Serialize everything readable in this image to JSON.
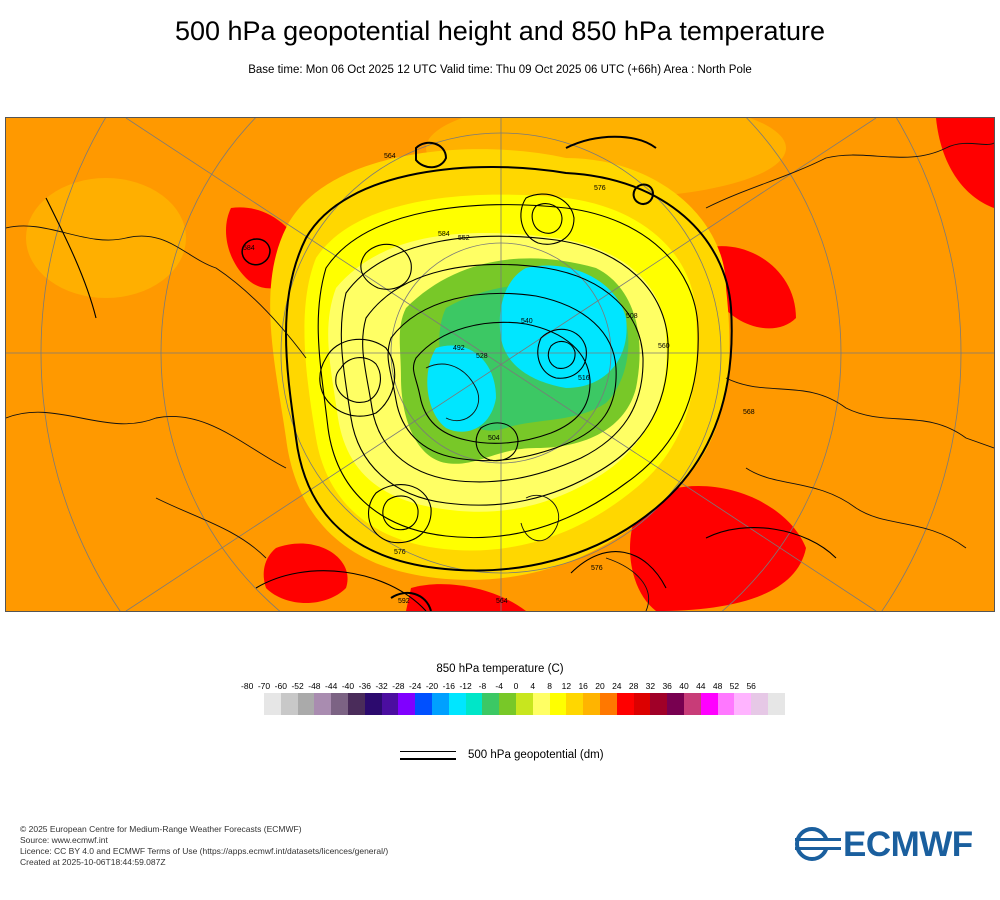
{
  "header": {
    "title": "500 hPa geopotential height and 850 hPa temperature",
    "subtitle": "Base time: Mon 06 Oct 2025 12 UTC Valid time: Thu 09 Oct 2025 06 UTC (+66h) Area : North Pole"
  },
  "map": {
    "area": "North Pole",
    "contour_labels": [
      "564",
      "576",
      "584",
      "552",
      "540",
      "528",
      "516",
      "504",
      "492",
      "508",
      "560",
      "568",
      "576",
      "584",
      "592",
      "564",
      "576"
    ]
  },
  "legend": {
    "temperature_title": "850 hPa temperature (C)",
    "ticks": [
      "-80",
      "-70",
      "-60",
      "-52",
      "-48",
      "-44",
      "-40",
      "-36",
      "-32",
      "-28",
      "-24",
      "-20",
      "-16",
      "-12",
      "-8",
      "-4",
      "0",
      "4",
      "8",
      "12",
      "16",
      "20",
      "24",
      "28",
      "32",
      "36",
      "40",
      "44",
      "48",
      "52",
      "56"
    ],
    "colors": [
      "#e6e6e6",
      "#c8c8c8",
      "#aaaaaa",
      "#a98cb0",
      "#7c6384",
      "#4a2c5a",
      "#2c0a6e",
      "#4b0ea0",
      "#8000ff",
      "#0050ff",
      "#00a0ff",
      "#00e6ff",
      "#00e6c8",
      "#3cc864",
      "#78c828",
      "#c8e61e",
      "#ffff64",
      "#ffff00",
      "#ffd700",
      "#ffb400",
      "#ff7800",
      "#ff0000",
      "#dc0000",
      "#a00028",
      "#780050",
      "#c83c78",
      "#ff00ff",
      "#ff78ff",
      "#ffb4ff",
      "#e6c8e6",
      "#e6e6e6"
    ],
    "geopotential_label": "500 hPa geopotential (dm)"
  },
  "credits": {
    "line1": "© 2025 European Centre for Medium-Range Weather Forecasts (ECMWF)",
    "line2": "Source: www.ecmwf.int",
    "line3": "Licence: CC BY 4.0 and ECMWF Terms of Use (https://apps.ecmwf.int/datasets/licences/general/)",
    "line4": "Created at 2025-10-06T18:44:59.087Z"
  },
  "logo": {
    "text": "ECMWF",
    "color": "#1a5f9e"
  }
}
